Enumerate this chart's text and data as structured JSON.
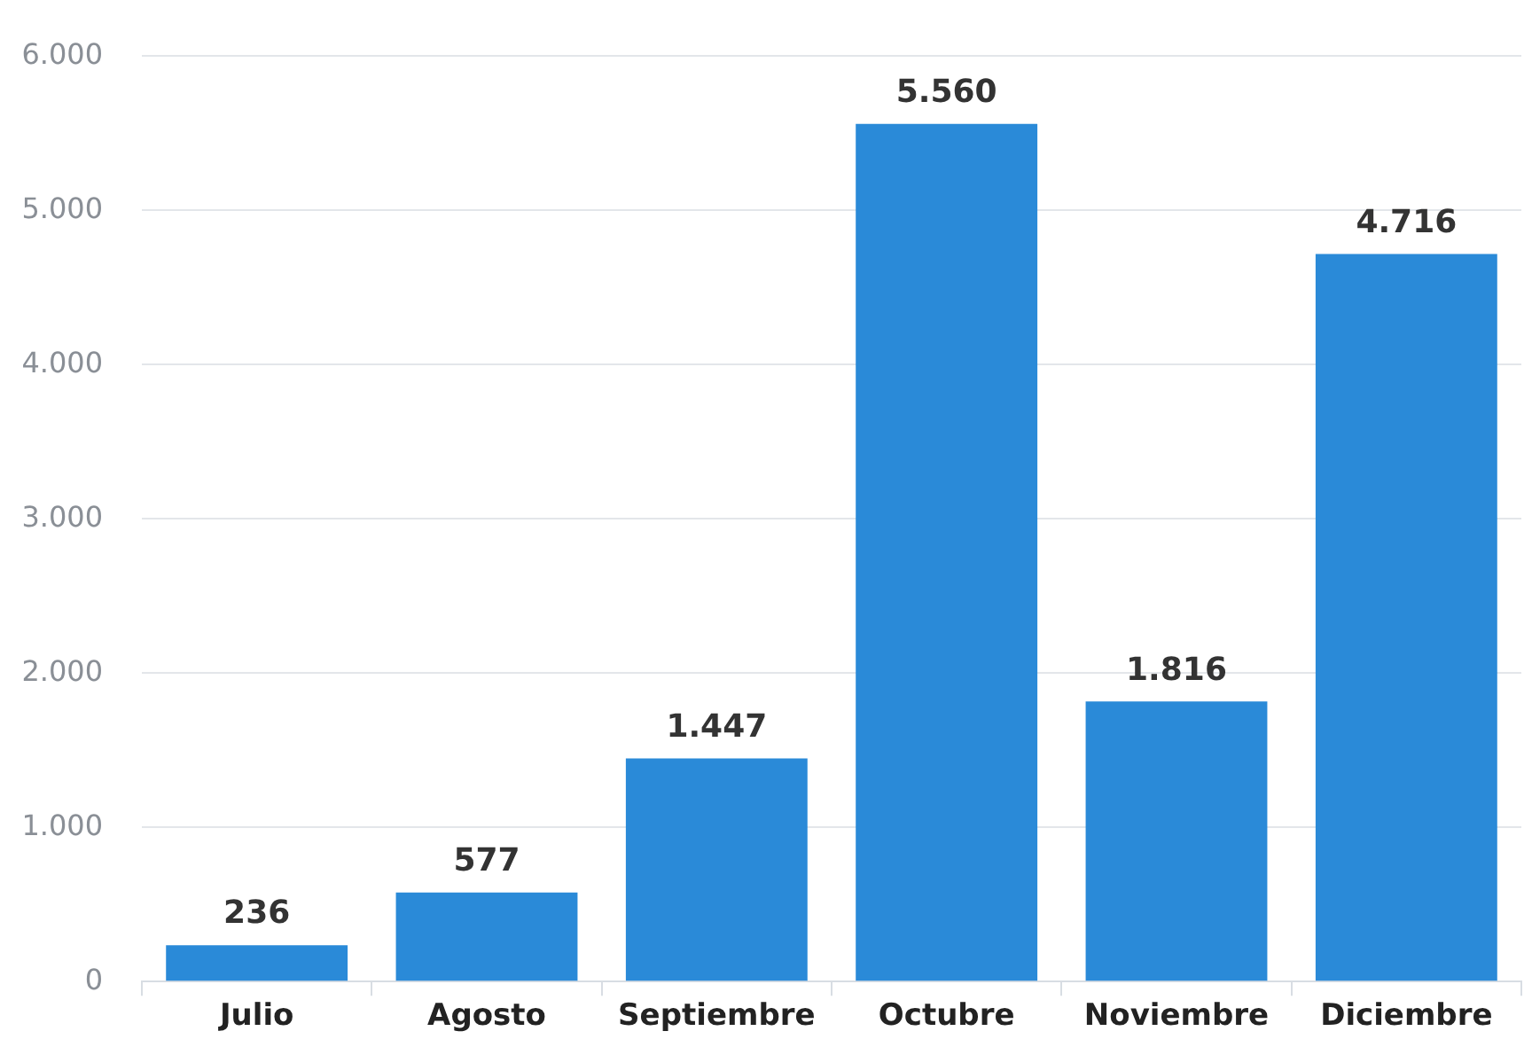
{
  "chart_data": {
    "type": "bar",
    "categories": [
      "Julio",
      "Agosto",
      "Septiembre",
      "Octubre",
      "Noviembre",
      "Diciembre"
    ],
    "values": [
      236,
      577,
      1447,
      5560,
      1816,
      4716
    ],
    "value_labels": [
      "236",
      "577",
      "1.447",
      "5.560",
      "1.816",
      "4.716"
    ],
    "color": "#2a8ad8",
    "ylim": [
      0,
      6000
    ],
    "yticks": [
      0,
      {
        "value": 1000,
        "label": "1.000"
      },
      {
        "value": 2000,
        "label": "2.000"
      },
      {
        "value": 3000,
        "label": "3.000"
      },
      {
        "value": 4000,
        "label": "4.000"
      },
      {
        "value": 5000,
        "label": "5.000"
      },
      {
        "value": 6000,
        "label": "6.000"
      }
    ],
    "grid": "y",
    "legend": false
  }
}
